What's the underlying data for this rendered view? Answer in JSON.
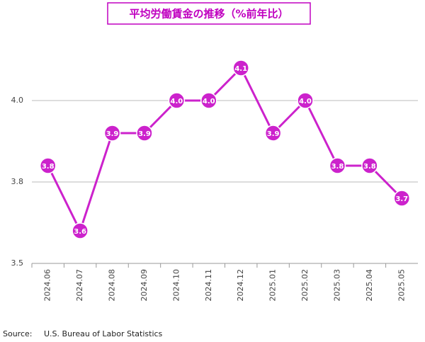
{
  "chart_data": {
    "type": "line",
    "title": "平均労働賃金の推移（%前年比）",
    "source_label": "Source:",
    "source": "U.S. Bureau of Labor Statistics",
    "categories": [
      "2024.06",
      "2024.07",
      "2024.08",
      "2024.09",
      "2024.10",
      "2024.11",
      "2024.12",
      "2025.01",
      "2025.02",
      "2025.03",
      "2025.04",
      "2025.05"
    ],
    "values": [
      3.8,
      3.6,
      3.9,
      3.9,
      4,
      4,
      4.1,
      3.9,
      4,
      3.8,
      3.8,
      3.7
    ],
    "value_labels": [
      "3.8",
      "3.6",
      "3.9",
      "3.9",
      "4.0",
      "4.0",
      "4.1",
      "3.9",
      "4.0",
      "3.8",
      "3.8",
      "3.7"
    ],
    "color": "#cc22cc",
    "ylim": [
      3.5,
      4.25
    ],
    "yticks": [
      3.5,
      {
        "value": 3.75,
        "label": "3.8"
      },
      {
        "value": 4,
        "label": "4.0"
      }
    ],
    "grid": true
  }
}
